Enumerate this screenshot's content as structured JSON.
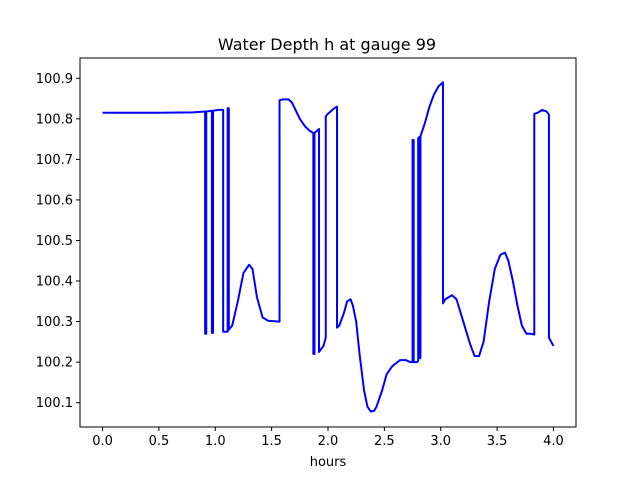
{
  "chart_data": {
    "type": "line",
    "title": "Water Depth h at gauge 99",
    "xlabel": "hours",
    "ylabel": "",
    "xlim": [
      -0.2,
      4.2
    ],
    "ylim": [
      100.04,
      100.95
    ],
    "xticks": [
      0.0,
      0.5,
      1.0,
      1.5,
      2.0,
      2.5,
      3.0,
      3.5,
      4.0
    ],
    "xtick_labels": [
      "0.0",
      "0.5",
      "1.0",
      "1.5",
      "2.0",
      "2.5",
      "3.0",
      "3.5",
      "4.0"
    ],
    "yticks": [
      100.1,
      100.2,
      100.3,
      100.4,
      100.5,
      100.6,
      100.7,
      100.8,
      100.9
    ],
    "ytick_labels": [
      "100.1",
      "100.2",
      "100.3",
      "100.4",
      "100.5",
      "100.6",
      "100.7",
      "100.8",
      "100.9"
    ],
    "grid": false,
    "series": [
      {
        "color": "#0000ff",
        "x": [
          0.0,
          0.5,
          0.8,
          0.91,
          0.91,
          0.92,
          0.92,
          0.97,
          0.97,
          0.98,
          0.98,
          1.03,
          1.07,
          1.07,
          1.1,
          1.11,
          1.11,
          1.12,
          1.12,
          1.15,
          1.2,
          1.25,
          1.3,
          1.33,
          1.37,
          1.42,
          1.47,
          1.57,
          1.57,
          1.6,
          1.65,
          1.68,
          1.75,
          1.8,
          1.84,
          1.87,
          1.87,
          1.88,
          1.88,
          1.9,
          1.92,
          1.92,
          1.96,
          1.98,
          1.98,
          1.99,
          2.03,
          2.05,
          2.08,
          2.08,
          2.1,
          2.14,
          2.17,
          2.2,
          2.22,
          2.25,
          2.28,
          2.32,
          2.35,
          2.38,
          2.41,
          2.43,
          2.48,
          2.52,
          2.57,
          2.64,
          2.69,
          2.73,
          2.75,
          2.75,
          2.76,
          2.76,
          2.79,
          2.8,
          2.8,
          2.81,
          2.81,
          2.82,
          2.82,
          2.86,
          2.9,
          2.94,
          2.98,
          3.02,
          3.02,
          3.04,
          3.1,
          3.14,
          3.2,
          3.26,
          3.3,
          3.34,
          3.38,
          3.43,
          3.48,
          3.53,
          3.57,
          3.6,
          3.64,
          3.68,
          3.72,
          3.76,
          3.8,
          3.83,
          3.83,
          3.86,
          3.9,
          3.94,
          3.96,
          3.96,
          4.0
        ],
        "y": [
          100.815,
          100.815,
          100.816,
          100.818,
          100.27,
          100.27,
          100.818,
          100.82,
          100.272,
          100.272,
          100.82,
          100.822,
          100.822,
          100.275,
          100.275,
          100.275,
          100.826,
          100.826,
          100.28,
          100.29,
          100.35,
          100.42,
          100.44,
          100.43,
          100.36,
          100.31,
          100.302,
          100.3,
          100.846,
          100.848,
          100.848,
          100.84,
          100.8,
          100.78,
          100.77,
          100.765,
          100.22,
          100.22,
          100.765,
          100.77,
          100.775,
          100.225,
          100.24,
          100.26,
          100.805,
          100.81,
          100.82,
          100.825,
          100.83,
          100.285,
          100.29,
          100.32,
          100.35,
          100.355,
          100.34,
          100.3,
          100.22,
          100.13,
          100.09,
          100.078,
          100.08,
          100.09,
          100.13,
          100.17,
          100.19,
          100.205,
          100.205,
          100.2,
          100.2,
          100.748,
          100.748,
          100.2,
          100.2,
          100.203,
          100.752,
          100.755,
          100.21,
          100.21,
          100.757,
          100.79,
          100.83,
          100.86,
          100.88,
          100.89,
          100.345,
          100.355,
          100.365,
          100.355,
          100.3,
          100.245,
          100.215,
          100.215,
          100.25,
          100.35,
          100.43,
          100.465,
          100.47,
          100.45,
          100.4,
          100.34,
          100.29,
          100.27,
          100.27,
          100.268,
          100.812,
          100.815,
          100.822,
          100.818,
          100.81,
          100.26,
          100.24
        ]
      }
    ]
  }
}
